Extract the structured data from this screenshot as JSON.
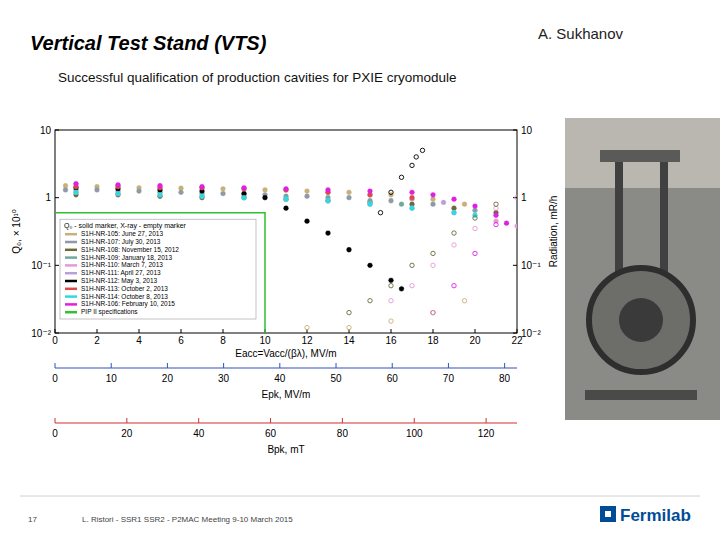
{
  "slide": {
    "title": "Vertical Test Stand (VTS)",
    "author": "A. Sukhanov",
    "subtitle": "Successful qualification of production cavities for PXIE cryomodule",
    "page": "17",
    "footer": "L. Ristori - SSR1 SSR2 - P2MAC Meeting 9-10 March 2015",
    "logo": "Fermilab"
  },
  "chart_data": [
    {
      "type": "scatter",
      "x_label": "Eacc=Vacc/(βλ), MV/m",
      "y_label": "Q₀, × 10¹⁰",
      "y2_label": "Radiation, mR/h",
      "legend_title": "Q₀ - solid marker, X-ray - empty marker",
      "legend": "lower left",
      "log": "y",
      "grid": false,
      "xlim": [
        0,
        22
      ],
      "xticks": [
        0,
        2,
        4,
        6,
        8,
        10,
        12,
        14,
        16,
        18,
        20,
        22
      ],
      "ylim": [
        0.01,
        10
      ],
      "yticks": [
        {
          "value": 0.01,
          "label": "10⁻²"
        },
        {
          "value": 0.1,
          "label": "10⁻¹"
        },
        1,
        10
      ],
      "y2lim": [
        0.01,
        10
      ],
      "y2ticks": [
        {
          "value": 0.01,
          "label": "10⁻²"
        },
        {
          "value": 0.1,
          "label": "10⁻¹"
        },
        1,
        10
      ],
      "series": [
        {
          "name": "S1H-NR-105: June 27, 2013",
          "color": "#c8b078",
          "marker": "circle",
          "x": [
            0.5,
            2,
            4,
            6,
            8,
            10,
            12,
            14,
            16,
            18,
            19.5
          ],
          "values": [
            1.5,
            1.45,
            1.4,
            1.38,
            1.35,
            1.3,
            1.25,
            1.2,
            1.1,
            0.95,
            0.8
          ]
        },
        {
          "name": "S1H-NR-107: July 30, 2013",
          "color": "#8e9aa6",
          "marker": "circle",
          "x": [
            0.5,
            2,
            4,
            6,
            8,
            10,
            12,
            14,
            16,
            18,
            20
          ],
          "values": [
            1.3,
            1.3,
            1.25,
            1.2,
            1.15,
            1.1,
            1.05,
            1.0,
            0.9,
            0.8,
            0.65
          ]
        },
        {
          "name": "S1H-NR-108: November 15, 2012",
          "color": "#6b6b3a",
          "marker": "circle",
          "x": [
            1,
            3,
            5,
            7,
            9,
            11,
            13,
            15,
            17,
            19,
            21
          ],
          "values": [
            1.1,
            1.1,
            1.05,
            1.0,
            1.0,
            0.95,
            0.9,
            0.85,
            0.8,
            0.7,
            0.6
          ]
        },
        {
          "name": "S1H-NR-109: January 18, 2013",
          "color": "#70a8a0",
          "marker": "circle",
          "x": [
            1,
            3,
            5,
            7,
            9,
            11,
            13,
            15,
            16.5
          ],
          "values": [
            1.3,
            1.25,
            1.2,
            1.15,
            1.1,
            1.05,
            1.0,
            0.9,
            0.8
          ]
        },
        {
          "name": "S1H-NR-110: March 7, 2013",
          "color": "#e49ad8",
          "marker": "circle",
          "x": [
            1,
            3,
            5,
            7,
            9,
            11,
            13,
            15,
            17,
            19,
            21,
            22
          ],
          "values": [
            1.2,
            1.15,
            1.1,
            1.05,
            1.0,
            0.95,
            0.9,
            0.8,
            0.7,
            0.6,
            0.45,
            0.38
          ]
        },
        {
          "name": "S1H-NR-111: April 27, 2013",
          "color": "#b8a0d8",
          "marker": "circle",
          "x": [
            1,
            3,
            5,
            7,
            9,
            11,
            13,
            15,
            17,
            18.5
          ],
          "values": [
            1.6,
            1.5,
            1.45,
            1.4,
            1.35,
            1.3,
            1.2,
            1.1,
            0.95,
            0.85
          ]
        },
        {
          "name": "S1H-NR-112: May 3, 2013",
          "color": "#000000",
          "marker": "circle",
          "x": [
            1,
            3,
            5,
            7,
            9,
            10,
            11,
            12,
            13,
            14,
            15,
            16,
            16.5
          ],
          "values": [
            1.4,
            1.35,
            1.3,
            1.25,
            1.15,
            1.0,
            0.7,
            0.45,
            0.3,
            0.17,
            0.1,
            0.06,
            0.045
          ]
        },
        {
          "name": "S1H-NR-113: October 2, 2013",
          "color": "#e04848",
          "marker": "circle",
          "x": [
            1,
            3,
            5,
            7,
            9,
            11,
            13,
            15,
            17
          ],
          "values": [
            1.45,
            1.45,
            1.4,
            1.4,
            1.35,
            1.3,
            1.2,
            1.1,
            1.0
          ]
        },
        {
          "name": "S1H-NR-114: October 8, 2013",
          "color": "#30d8e0",
          "marker": "circle",
          "x": [
            1,
            3,
            5,
            7,
            9,
            11,
            13,
            15,
            17,
            19,
            20
          ],
          "values": [
            1.2,
            1.15,
            1.1,
            1.05,
            1.0,
            0.95,
            0.9,
            0.8,
            0.7,
            0.6,
            0.55
          ]
        },
        {
          "name": "S1H-NR-106: February 10, 2015",
          "color": "#e020e0",
          "marker": "circle",
          "x": [
            1,
            3,
            5,
            7,
            9,
            11,
            13,
            15,
            17,
            18,
            19,
            20,
            21,
            21.5
          ],
          "values": [
            1.6,
            1.55,
            1.5,
            1.45,
            1.4,
            1.35,
            1.3,
            1.25,
            1.2,
            1.1,
            0.95,
            0.75,
            0.55,
            0.42
          ]
        },
        {
          "name": "PIP II specifications",
          "color": "#30c030",
          "type": "line",
          "line_style": "solid",
          "x": [
            0,
            10,
            10
          ],
          "values": [
            0.6,
            0.6,
            0.01
          ]
        },
        {
          "name": "S1H-NR-112: May 3, 2013",
          "color": "#000000",
          "marker": "open_circle",
          "axis": "y2",
          "x": [
            15.5,
            16,
            16.5,
            17,
            17.2,
            17.5
          ],
          "values": [
            0.6,
            1.2,
            2,
            3,
            4,
            5
          ]
        },
        {
          "name": "S1H-NR-110: March 7, 2013",
          "color": "#e49ad8",
          "marker": "open_circle",
          "axis": "y2",
          "x": [
            16,
            17,
            18,
            19,
            20,
            21,
            22
          ],
          "values": [
            0.03,
            0.05,
            0.1,
            0.2,
            0.35,
            0.7,
            1.0
          ]
        },
        {
          "name": "S1H-NR-108: November 15, 2012",
          "color": "#6b6b3a",
          "marker": "open_circle",
          "axis": "y2",
          "x": [
            14,
            15,
            16,
            17,
            18,
            19,
            20,
            21
          ],
          "values": [
            0.02,
            0.03,
            0.05,
            0.1,
            0.15,
            0.3,
            0.5,
            0.8
          ]
        },
        {
          "name": "S1H-NR-106: February 10, 2015",
          "color": "#e020e0",
          "marker": "open_circle",
          "axis": "y2",
          "x": [
            18,
            19,
            20,
            21
          ],
          "values": [
            0.02,
            0.05,
            0.15,
            0.4
          ]
        },
        {
          "name": "S1H-NR-105: June 27, 2013",
          "color": "#c8b078",
          "marker": "open_circle",
          "axis": "y2",
          "x": [
            12,
            14,
            16,
            18,
            19.5
          ],
          "values": [
            0.012,
            0.012,
            0.015,
            0.02,
            0.03
          ]
        }
      ]
    },
    {
      "type": "axis",
      "x_label": "Epk, MV/m",
      "color": "#3050c0",
      "xlim": [
        0,
        82.2
      ],
      "xticks": [
        0,
        10,
        20,
        30,
        40,
        50,
        60,
        70,
        80
      ]
    },
    {
      "type": "axis",
      "x_label": "Bpk, mT",
      "color": "#d03030",
      "xlim": [
        0,
        128.6
      ],
      "xticks": [
        0,
        20,
        40,
        60,
        80,
        100,
        120
      ]
    }
  ]
}
